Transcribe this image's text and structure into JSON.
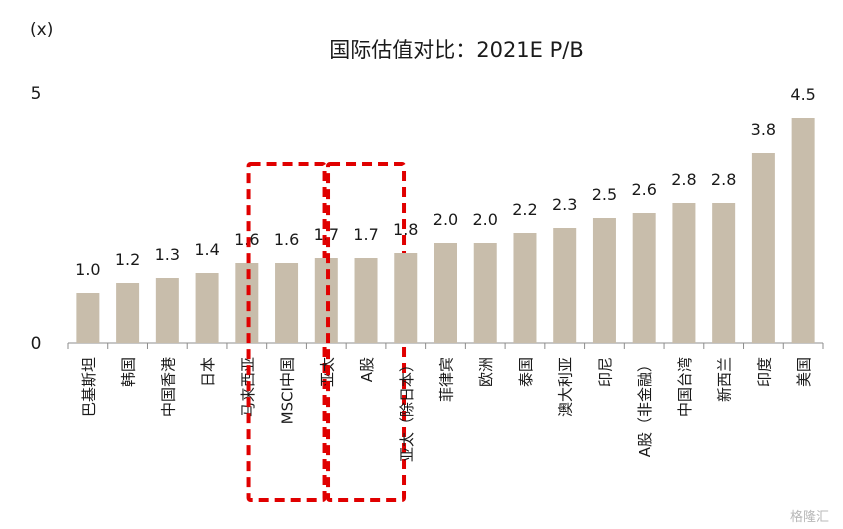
{
  "unit": "(x)",
  "watermark": "格隆汇",
  "colors": {
    "bar": "#c8bdab",
    "axis": "#8c8c8c",
    "highlight": "#e00000"
  },
  "chart_data": {
    "type": "bar",
    "title": "国际估值对比：2021E P/B",
    "ylim": [
      0,
      5
    ],
    "yticks": [
      0,
      5
    ],
    "grid": false,
    "categories": [
      "巴基斯坦",
      "韩国",
      "中国香港",
      "日本",
      "马来西亚",
      "MSCI中国",
      "亚太",
      "A股",
      "亚太（除日本）",
      "菲律宾",
      "欧洲",
      "泰国",
      "澳大利亚",
      "印尼",
      "A股（非金融）",
      "中国台湾",
      "新西兰",
      "印度",
      "美国"
    ],
    "values": [
      1.0,
      1.2,
      1.3,
      1.4,
      1.6,
      1.6,
      1.7,
      1.7,
      1.8,
      2.0,
      2.0,
      2.2,
      2.3,
      2.5,
      2.6,
      2.8,
      2.8,
      3.8,
      4.5
    ],
    "value_labels": [
      "1.0",
      "1.2",
      "1.3",
      "1.4",
      "1.6",
      "1.6",
      "1.7",
      "1.7",
      "1.8",
      "2.0",
      "2.0",
      "2.2",
      "2.3",
      "2.5",
      "2.6",
      "2.8",
      "2.8",
      "3.8",
      "4.5"
    ],
    "highlighted": [
      "MSCI中国",
      "A股"
    ]
  }
}
